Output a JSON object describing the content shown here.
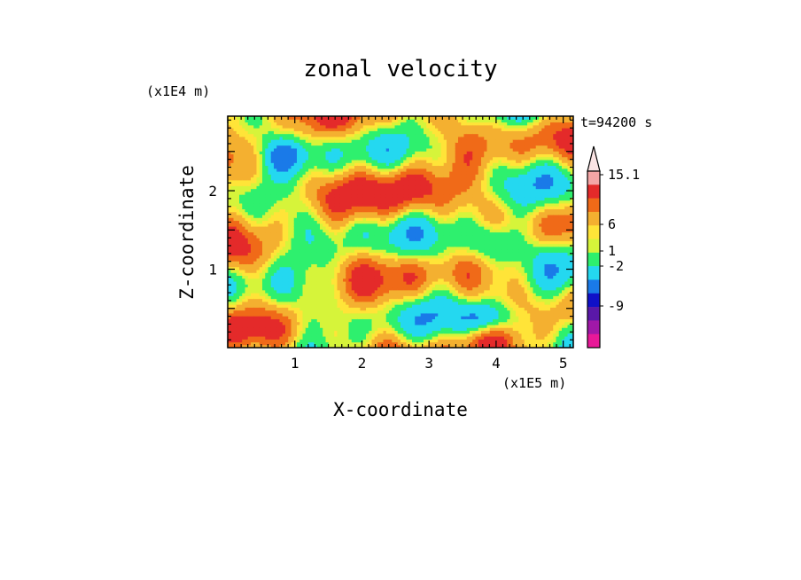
{
  "chart_data": {
    "type": "heatmap",
    "title": "zonal velocity",
    "xlabel": "X-coordinate",
    "ylabel": "Z-coordinate",
    "x_unit": "(x1E5 m)",
    "y_unit": "(x1E4 m)",
    "time_label": "t=94200 s",
    "xlim": [
      0,
      5.15
    ],
    "ylim": [
      0,
      2.95
    ],
    "x_ticks": [
      "1",
      "2",
      "3",
      "4",
      "5"
    ],
    "y_ticks": [
      "1",
      "2"
    ],
    "grid": false,
    "colorbar": {
      "labels": [
        "15.1",
        "6",
        "1",
        "-2",
        "-9"
      ],
      "colors": [
        "#f4a6a6",
        "#e42a2a",
        "#f06a18",
        "#f4b030",
        "#ffe438",
        "#d6f43a",
        "#2ef06e",
        "#24d8f0",
        "#1a7ae8",
        "#1010c8",
        "#5a18a8",
        "#a018a8",
        "#e81898"
      ]
    },
    "field_levels": [
      {
        "level": -9,
        "color": "#1010c8"
      },
      {
        "level": -5,
        "color": "#1a7ae8"
      },
      {
        "level": -2,
        "color": "#24d8f0"
      },
      {
        "level": 0,
        "color": "#2ef06e"
      },
      {
        "level": 1,
        "color": "#d6f43a"
      },
      {
        "level": 2,
        "color": "#ffe438"
      },
      {
        "level": 4,
        "color": "#f4b030"
      },
      {
        "level": 6,
        "color": "#f06a18"
      },
      {
        "level": 15.1,
        "color": "#e42a2a"
      }
    ]
  }
}
